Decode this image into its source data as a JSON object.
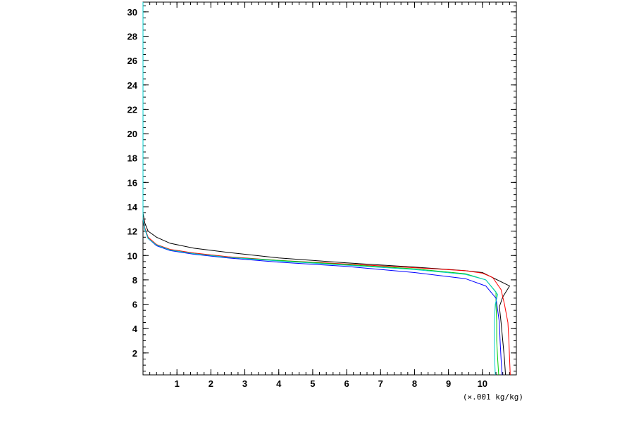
{
  "chart_data": {
    "type": "line",
    "title": "",
    "xlabel": "(×.001 kg/kg)",
    "ylabel": "",
    "xlim": [
      0,
      11.0
    ],
    "ylim": [
      0.2,
      30.8
    ],
    "x_ticks": [
      1,
      2,
      3,
      4,
      5,
      6,
      7,
      8,
      9,
      10
    ],
    "y_ticks": [
      2,
      4,
      6,
      8,
      10,
      12,
      14,
      16,
      18,
      20,
      22,
      24,
      26,
      28,
      30
    ],
    "grid": false,
    "legend": "none",
    "series": [
      {
        "color": "#000000",
        "points": [
          [
            10.68,
            0.2
          ],
          [
            10.65,
            1.5
          ],
          [
            10.6,
            3.0
          ],
          [
            10.55,
            4.5
          ],
          [
            10.5,
            5.8
          ],
          [
            10.6,
            6.6
          ],
          [
            10.8,
            7.5
          ],
          [
            10.0,
            8.6
          ],
          [
            9.5,
            8.75
          ],
          [
            8.0,
            9.05
          ],
          [
            6.0,
            9.4
          ],
          [
            4.0,
            9.8
          ],
          [
            2.5,
            10.25
          ],
          [
            1.5,
            10.6
          ],
          [
            0.8,
            11.0
          ],
          [
            0.4,
            11.5
          ],
          [
            0.15,
            12.0
          ],
          [
            0.05,
            12.7
          ],
          [
            0.0,
            13.5
          ],
          [
            0.0,
            30.8
          ]
        ]
      },
      {
        "color": "#ff0000",
        "points": [
          [
            10.82,
            0.2
          ],
          [
            10.8,
            1.5
          ],
          [
            10.78,
            3.0
          ],
          [
            10.75,
            4.5
          ],
          [
            10.65,
            6.0
          ],
          [
            10.55,
            7.2
          ],
          [
            10.3,
            8.2
          ],
          [
            10.0,
            8.55
          ],
          [
            9.5,
            8.75
          ],
          [
            8.0,
            9.0
          ],
          [
            6.0,
            9.3
          ],
          [
            4.0,
            9.6
          ],
          [
            2.5,
            9.9
          ],
          [
            1.5,
            10.2
          ],
          [
            0.8,
            10.5
          ],
          [
            0.4,
            10.9
          ],
          [
            0.15,
            11.5
          ],
          [
            0.05,
            12.3
          ],
          [
            0.0,
            13.2
          ],
          [
            0.0,
            30.8
          ]
        ]
      },
      {
        "color": "#00cc00",
        "points": [
          [
            10.48,
            0.2
          ],
          [
            10.45,
            1.5
          ],
          [
            10.42,
            3.0
          ],
          [
            10.42,
            4.5
          ],
          [
            10.4,
            6.0
          ],
          [
            10.4,
            7.0
          ],
          [
            10.1,
            8.0
          ],
          [
            9.5,
            8.5
          ],
          [
            8.0,
            8.9
          ],
          [
            6.0,
            9.25
          ],
          [
            4.0,
            9.6
          ],
          [
            2.5,
            9.85
          ],
          [
            1.5,
            10.15
          ],
          [
            0.8,
            10.45
          ],
          [
            0.4,
            10.85
          ],
          [
            0.15,
            11.4
          ],
          [
            0.05,
            12.2
          ],
          [
            0.0,
            13.0
          ],
          [
            0.0,
            30.8
          ]
        ]
      },
      {
        "color": "#0000ff",
        "points": [
          [
            10.58,
            0.2
          ],
          [
            10.55,
            1.5
          ],
          [
            10.52,
            3.0
          ],
          [
            10.5,
            4.5
          ],
          [
            10.45,
            5.5
          ],
          [
            10.4,
            6.5
          ],
          [
            10.1,
            7.5
          ],
          [
            9.5,
            8.1
          ],
          [
            8.0,
            8.6
          ],
          [
            6.0,
            9.1
          ],
          [
            4.0,
            9.45
          ],
          [
            2.5,
            9.8
          ],
          [
            1.5,
            10.1
          ],
          [
            0.8,
            10.4
          ],
          [
            0.4,
            10.8
          ],
          [
            0.15,
            11.4
          ],
          [
            0.05,
            12.2
          ],
          [
            0.0,
            13.0
          ],
          [
            0.0,
            30.8
          ]
        ]
      },
      {
        "color": "#00cccc",
        "points": [
          [
            10.38,
            0.2
          ],
          [
            10.36,
            1.5
          ],
          [
            10.35,
            3.0
          ],
          [
            10.35,
            4.5
          ],
          [
            10.38,
            6.0
          ],
          [
            10.45,
            6.8
          ],
          [
            10.1,
            8.0
          ],
          [
            9.5,
            8.45
          ],
          [
            8.0,
            8.85
          ],
          [
            6.0,
            9.2
          ],
          [
            4.0,
            9.55
          ],
          [
            2.5,
            9.85
          ],
          [
            1.5,
            10.15
          ],
          [
            0.8,
            10.45
          ],
          [
            0.4,
            10.85
          ],
          [
            0.15,
            11.4
          ],
          [
            0.05,
            12.2
          ],
          [
            0.0,
            13.0
          ],
          [
            0.0,
            30.8
          ]
        ]
      }
    ]
  }
}
